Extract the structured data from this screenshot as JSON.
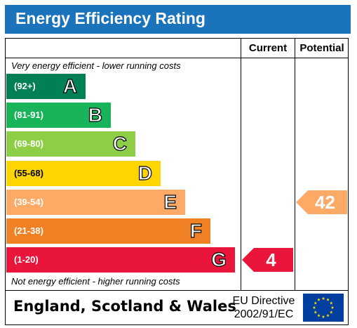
{
  "title": "Energy Efficiency Rating",
  "columns": {
    "current": "Current",
    "potential": "Potential"
  },
  "notes": {
    "top": "Very energy efficient - lower running costs",
    "bottom": "Not energy efficient - higher running costs"
  },
  "footer": {
    "country": "England, Scotland & Wales",
    "directive_line1": "EU Directive",
    "directive_line2": "2002/91/EC"
  },
  "colors": {
    "title_bar": "#1b74bb",
    "A": "#008054",
    "B": "#19b459",
    "C": "#8dce46",
    "D": "#ffd500",
    "E": "#fcaa65",
    "F": "#ef8023",
    "G": "#e9153b",
    "eu_flag": "#003fa0",
    "eu_stars": "#ffdd00"
  },
  "chart_data": {
    "type": "bar",
    "bands": [
      {
        "letter": "A",
        "range": "(92+)"
      },
      {
        "letter": "B",
        "range": "(81-91)"
      },
      {
        "letter": "C",
        "range": "(69-80)"
      },
      {
        "letter": "D",
        "range": "(55-68)"
      },
      {
        "letter": "E",
        "range": "(39-54)"
      },
      {
        "letter": "F",
        "range": "(21-38)"
      },
      {
        "letter": "G",
        "range": "(1-20)"
      }
    ],
    "current": {
      "value": 4,
      "band": "G"
    },
    "potential": {
      "value": 42,
      "band": "E"
    }
  }
}
